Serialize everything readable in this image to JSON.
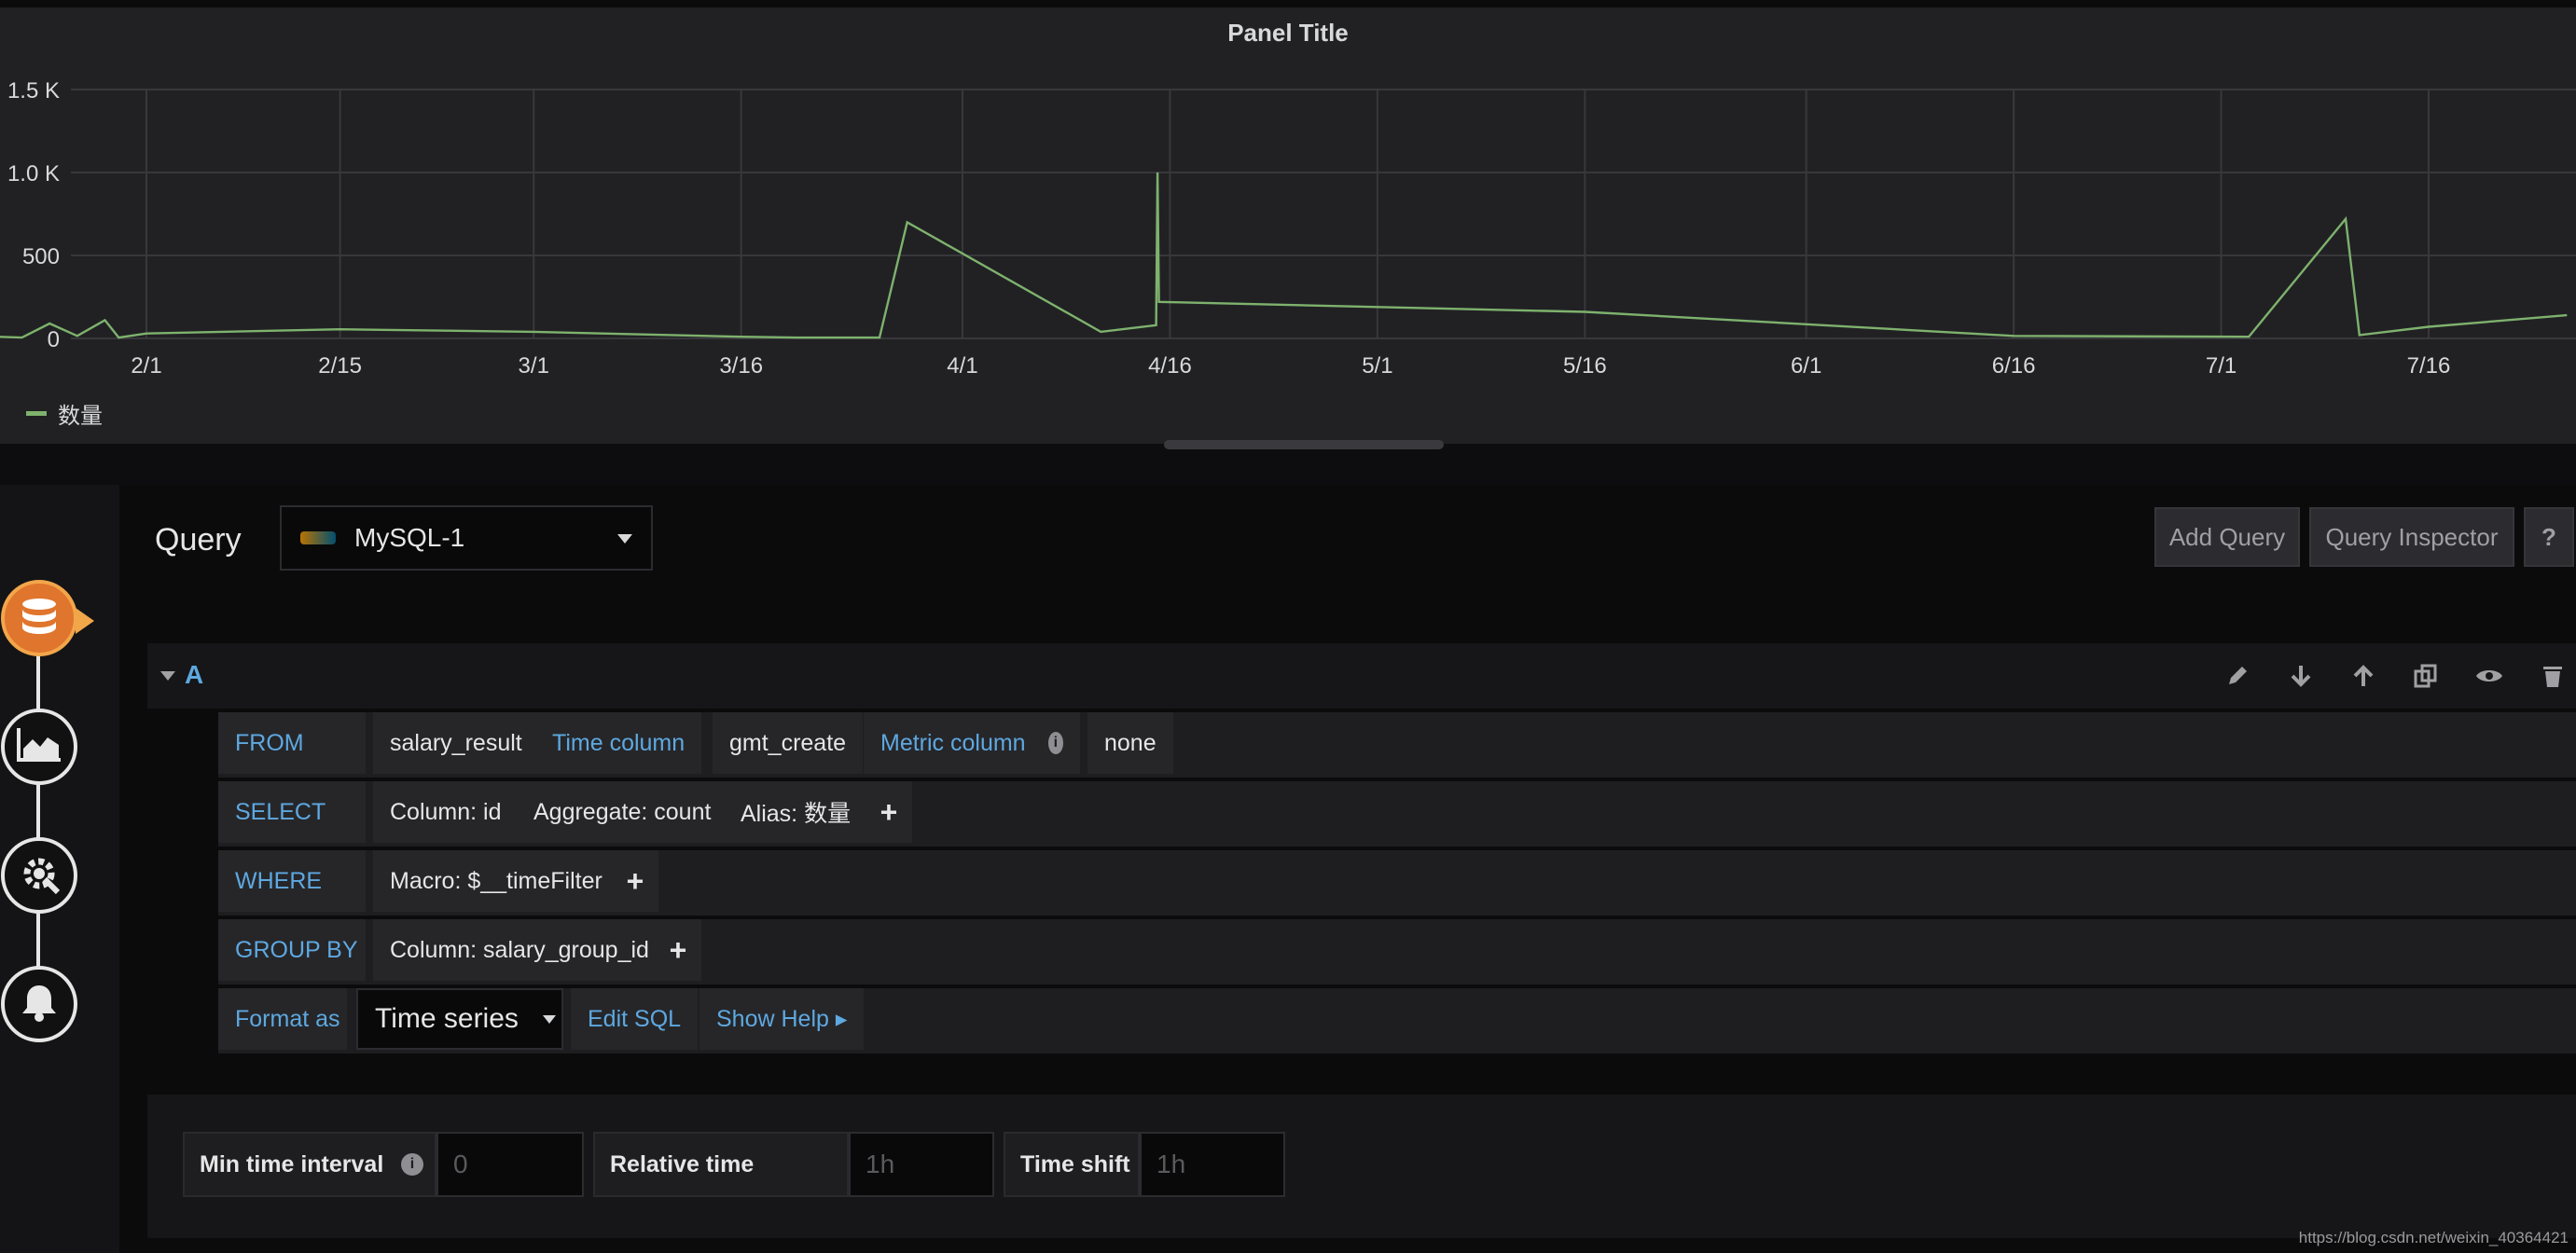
{
  "panel": {
    "title": "Panel Title",
    "legend": "数量"
  },
  "chart_data": {
    "type": "line",
    "title": "Panel Title",
    "y_ticks": [
      "0",
      "500",
      "1.0 K",
      "1.5 K"
    ],
    "ylim": [
      0,
      1500
    ],
    "x_ticks": [
      "2/1",
      "2/15",
      "3/1",
      "3/16",
      "4/1",
      "4/16",
      "5/1",
      "5/16",
      "6/1",
      "6/16",
      "7/1",
      "7/16"
    ],
    "grid": true,
    "legend_placement": "bottom-left",
    "series": [
      {
        "name": "数量",
        "color": "#7eb26d",
        "points": [
          [
            "01-21",
            220
          ],
          [
            "01-21",
            10
          ],
          [
            "01-23",
            5
          ],
          [
            "01-25",
            90
          ],
          [
            "01-27",
            15
          ],
          [
            "01-29",
            110
          ],
          [
            "01-30",
            5
          ],
          [
            "02-01",
            30
          ],
          [
            "02-15",
            55
          ],
          [
            "03-01",
            40
          ],
          [
            "03-16",
            10
          ],
          [
            "03-20",
            5
          ],
          [
            "03-26",
            5
          ],
          [
            "03-28",
            700
          ],
          [
            "04-11",
            40
          ],
          [
            "04-15",
            80
          ],
          [
            "04-15",
            1000
          ],
          [
            "04-15",
            220
          ],
          [
            "05-16",
            160
          ],
          [
            "06-16",
            15
          ],
          [
            "07-03",
            10
          ],
          [
            "07-10",
            720
          ],
          [
            "07-11",
            20
          ],
          [
            "07-16",
            70
          ],
          [
            "07-26",
            140
          ]
        ]
      }
    ]
  },
  "query_editor": {
    "title": "Query",
    "datasource": "MySQL-1",
    "add_query": "Add Query",
    "query_inspector": "Query Inspector",
    "help": "?",
    "ref_id": "A",
    "rows": {
      "from": {
        "kw": "FROM",
        "table": "salary_result",
        "time_kw": "Time column",
        "time_col": "gmt_create",
        "metric_kw": "Metric column",
        "metric_col": "none"
      },
      "select": {
        "kw": "SELECT",
        "column": "Column: id",
        "aggregate": "Aggregate: count",
        "alias": "Alias: 数量",
        "plus": "+"
      },
      "where": {
        "kw": "WHERE",
        "macro": "Macro: $__timeFilter",
        "plus": "+"
      },
      "group_by": {
        "kw": "GROUP BY",
        "column": "Column: salary_group_id",
        "plus": "+"
      },
      "format": {
        "kw": "Format as",
        "value": "Time series",
        "edit_sql": "Edit SQL",
        "show_help": "Show Help ▸"
      }
    }
  },
  "options": {
    "min_interval_label": "Min time interval",
    "min_interval_placeholder": "0",
    "relative_time_label": "Relative time",
    "relative_time_placeholder": "1h",
    "time_shift_label": "Time shift",
    "time_shift_placeholder": "1h"
  },
  "watermark": "https://blog.csdn.net/weixin_40364421"
}
